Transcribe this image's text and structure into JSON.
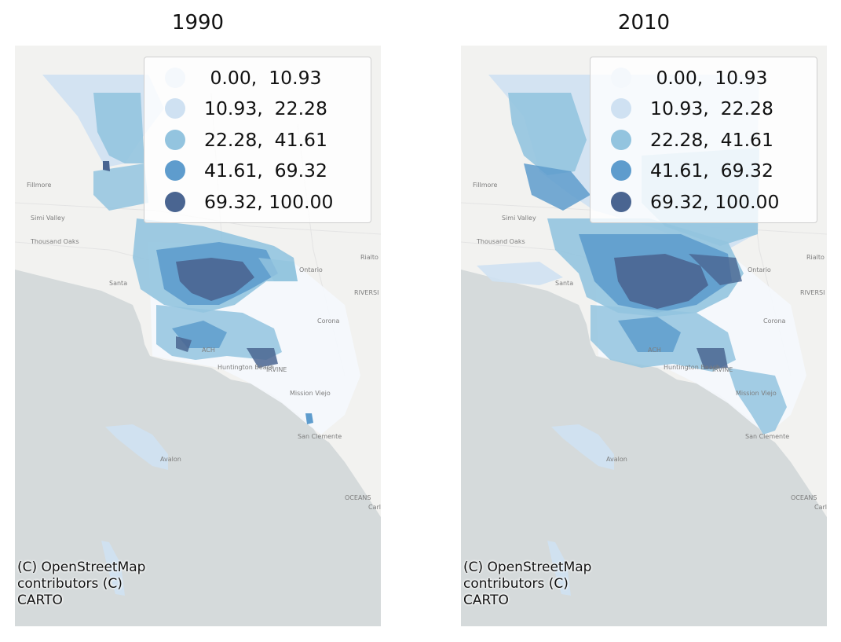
{
  "panels": [
    {
      "title": "1990",
      "legend": [
        {
          "label": " 0.00,  10.93",
          "color": "#f4f8fc"
        },
        {
          "label": "10.93,  22.28",
          "color": "#cfe1f2"
        },
        {
          "label": "22.28,  41.61",
          "color": "#93c4df"
        },
        {
          "label": "41.61,  69.32",
          "color": "#5e9ccd"
        },
        {
          "label": "69.32, 100.00",
          "color": "#4a6591"
        }
      ],
      "places": [
        "Fillmore",
        "Simi Valley",
        "Thousand Oaks",
        "Santa",
        "Ontario",
        "Rialto",
        "RIVERSI",
        "Corona",
        "ACH",
        "IRVINE",
        "Huntington Beach",
        "Mission Viejo",
        "San Clemente",
        "Avalon",
        "OCEANS",
        "Carlsl"
      ],
      "attribution": [
        "(C) OpenStreetMap",
        "contributors (C)",
        "CARTO"
      ]
    },
    {
      "title": "2010",
      "legend": [
        {
          "label": " 0.00,  10.93",
          "color": "#f4f8fc"
        },
        {
          "label": "10.93,  22.28",
          "color": "#cfe1f2"
        },
        {
          "label": "22.28,  41.61",
          "color": "#93c4df"
        },
        {
          "label": "41.61,  69.32",
          "color": "#5e9ccd"
        },
        {
          "label": "69.32, 100.00",
          "color": "#4a6591"
        }
      ],
      "places": [
        "Fillmore",
        "Simi Valley",
        "Thousand Oaks",
        "Santa",
        "Ontario",
        "Rialto",
        "RIVERSI",
        "Corona",
        "ACH",
        "IRVINE",
        "Huntington Beach",
        "Mission Viejo",
        "San Clemente",
        "Avalon",
        "OCEANS",
        "Carlsl"
      ],
      "attribution": [
        "(C) OpenStreetMap",
        "contributors (C)",
        "CARTO"
      ]
    }
  ],
  "colors": {
    "land": "#f2f2f0",
    "ocean": "#d5dadb",
    "roads": "#e0e0e0"
  }
}
